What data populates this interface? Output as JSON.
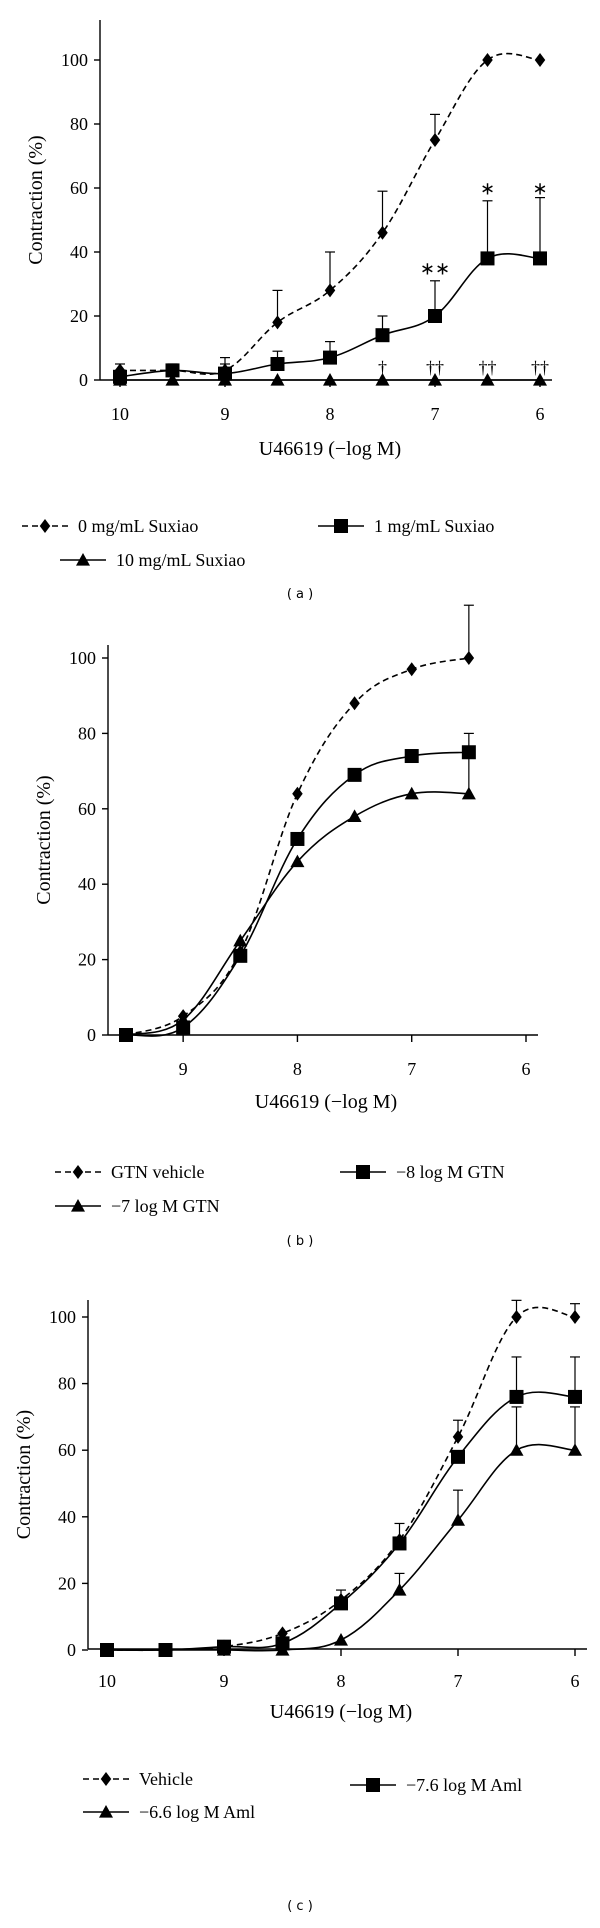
{
  "chart_data": [
    {
      "type": "line",
      "panel_label": "( a )",
      "xlabel": "U46619 (−log M)",
      "ylabel": "Contraction (%)",
      "xlim": [
        10,
        6
      ],
      "ylim": [
        0,
        100
      ],
      "xticks": [
        10,
        9,
        8,
        7,
        6
      ],
      "yticks": [
        0,
        20,
        40,
        60,
        80,
        100
      ],
      "x": [
        10,
        9.5,
        9,
        8.5,
        8,
        7.5,
        7,
        6.5,
        6
      ],
      "legend_order": [
        0,
        2,
        1
      ],
      "series": [
        {
          "name": "0 mg/mL Suxiao",
          "marker": "diamond",
          "dashed": true,
          "values": [
            3,
            3,
            3,
            18,
            28,
            46,
            75,
            100,
            100
          ],
          "errors": [
            2,
            2,
            2,
            10,
            12,
            13,
            8,
            0,
            0
          ]
        },
        {
          "name": "1 mg/mL Suxiao",
          "marker": "square",
          "dashed": false,
          "values": [
            1,
            3,
            2,
            5,
            7,
            14,
            20,
            38,
            38
          ],
          "errors": [
            2,
            1,
            5,
            4,
            5,
            6,
            11,
            18,
            19
          ]
        },
        {
          "name": "10 mg/mL Suxiao",
          "marker": "triangle",
          "dashed": false,
          "values": [
            0,
            0,
            0,
            0,
            0,
            0,
            0,
            0,
            0
          ],
          "errors": [
            0,
            0,
            0,
            0,
            0,
            0,
            0,
            0,
            0
          ]
        }
      ],
      "annotations": [
        {
          "x": 7,
          "y": 33,
          "text": "∗∗"
        },
        {
          "x": 6.5,
          "y": 58,
          "text": "∗"
        },
        {
          "x": 6,
          "y": 58,
          "text": "∗"
        },
        {
          "x": 7.5,
          "y": 2,
          "text": "†"
        },
        {
          "x": 7,
          "y": 2,
          "text": "††"
        },
        {
          "x": 6.5,
          "y": 2,
          "text": "††"
        },
        {
          "x": 6,
          "y": 2,
          "text": "††"
        }
      ]
    },
    {
      "type": "line",
      "panel_label": "( b )",
      "xlabel": "U46619 (−log M)",
      "ylabel": "Contraction (%)",
      "xlim": [
        9.5,
        6
      ],
      "ylim": [
        0,
        100
      ],
      "xticks": [
        9,
        8,
        7,
        6
      ],
      "yticks": [
        0,
        20,
        40,
        60,
        80,
        100
      ],
      "x": [
        9.5,
        9,
        8.5,
        8,
        7.5,
        7,
        6.5
      ],
      "legend_order": [
        0,
        2,
        1
      ],
      "series": [
        {
          "name": "GTN vehicle",
          "marker": "diamond",
          "dashed": true,
          "values": [
            0,
            5,
            22,
            64,
            88,
            97,
            100
          ],
          "errors": [
            0,
            0,
            0,
            0,
            0,
            0,
            14
          ]
        },
        {
          "name": "−8 log M GTN",
          "marker": "square",
          "dashed": false,
          "values": [
            0,
            2,
            21,
            52,
            69,
            74,
            75
          ],
          "errors": [
            0,
            0,
            0,
            0,
            0,
            0,
            5
          ]
        },
        {
          "name": "−7 log M GTN",
          "marker": "triangle",
          "dashed": false,
          "values": [
            0,
            4,
            25,
            46,
            58,
            64,
            64
          ],
          "errors": [
            0,
            0,
            0,
            0,
            0,
            0,
            10
          ]
        }
      ]
    },
    {
      "type": "line",
      "panel_label": "( c )",
      "xlabel": "U46619 (−log M)",
      "ylabel": "Contraction (%)",
      "xlim": [
        10,
        6
      ],
      "ylim": [
        0,
        100
      ],
      "xticks": [
        10,
        9,
        8,
        7,
        6
      ],
      "yticks": [
        0,
        20,
        40,
        60,
        80,
        100
      ],
      "x": [
        10,
        9.5,
        9,
        8.5,
        8,
        7.5,
        7,
        6.5,
        6
      ],
      "legend_order": [
        0,
        2,
        1
      ],
      "series": [
        {
          "name": "Vehicle",
          "marker": "diamond",
          "dashed": true,
          "values": [
            0,
            0,
            1,
            5,
            15,
            33,
            64,
            100,
            100
          ],
          "errors": [
            0,
            0,
            0,
            0,
            3,
            5,
            5,
            5,
            4
          ]
        },
        {
          "name": "−7.6 log M Aml",
          "marker": "square",
          "dashed": false,
          "values": [
            0,
            0,
            1,
            2,
            14,
            32,
            58,
            76,
            76
          ],
          "errors": [
            0,
            0,
            0,
            0,
            0,
            0,
            0,
            12,
            12
          ]
        },
        {
          "name": "−6.6 log M Aml",
          "marker": "triangle",
          "dashed": false,
          "values": [
            0,
            0,
            0,
            0,
            3,
            18,
            39,
            60,
            60
          ],
          "errors": [
            0,
            0,
            0,
            0,
            0,
            5,
            9,
            13,
            13
          ]
        }
      ]
    }
  ]
}
